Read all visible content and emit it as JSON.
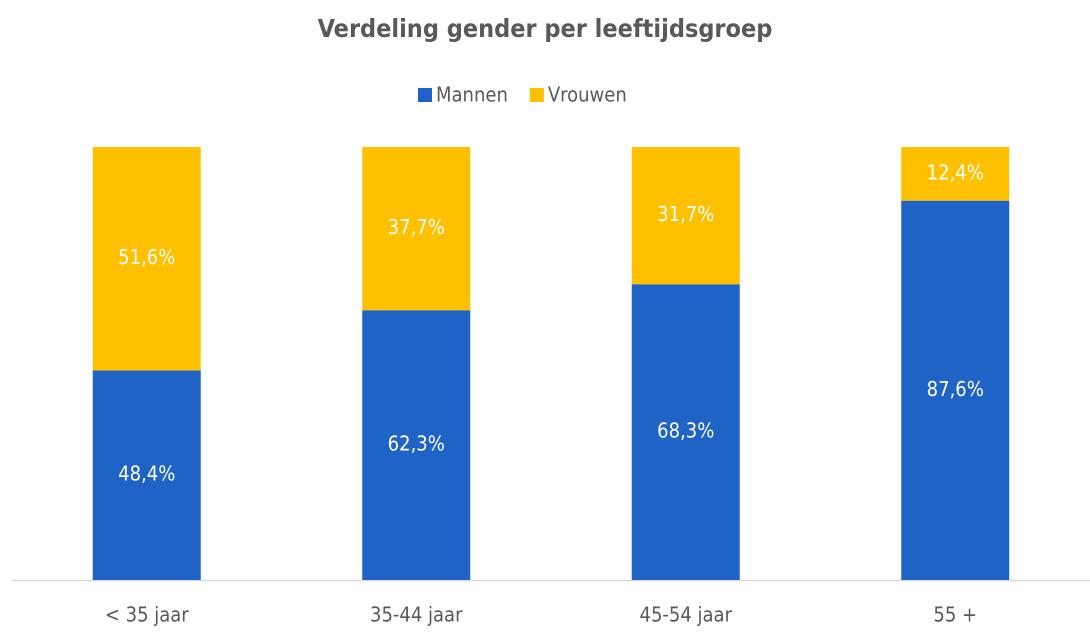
{
  "chart_data": {
    "type": "stacked_bar_100",
    "title": "Verdeling gender per leeftijdsgroep",
    "categories": [
      "< 35 jaar",
      "35-44 jaar",
      "45-54 jaar",
      "55 +"
    ],
    "series": [
      {
        "name": "Mannen",
        "color": "#1F63C6",
        "values": [
          48.4,
          62.3,
          68.3,
          87.6
        ],
        "value_labels": [
          "48,4%",
          "62,3%",
          "68,3%",
          "87,6%"
        ]
      },
      {
        "name": "Vrouwen",
        "color": "#FFC000",
        "values": [
          51.6,
          37.7,
          31.7,
          12.4
        ],
        "value_labels": [
          "51,6%",
          "37,7%",
          "31,7%",
          "12,4%"
        ]
      }
    ],
    "legend": "top"
  }
}
